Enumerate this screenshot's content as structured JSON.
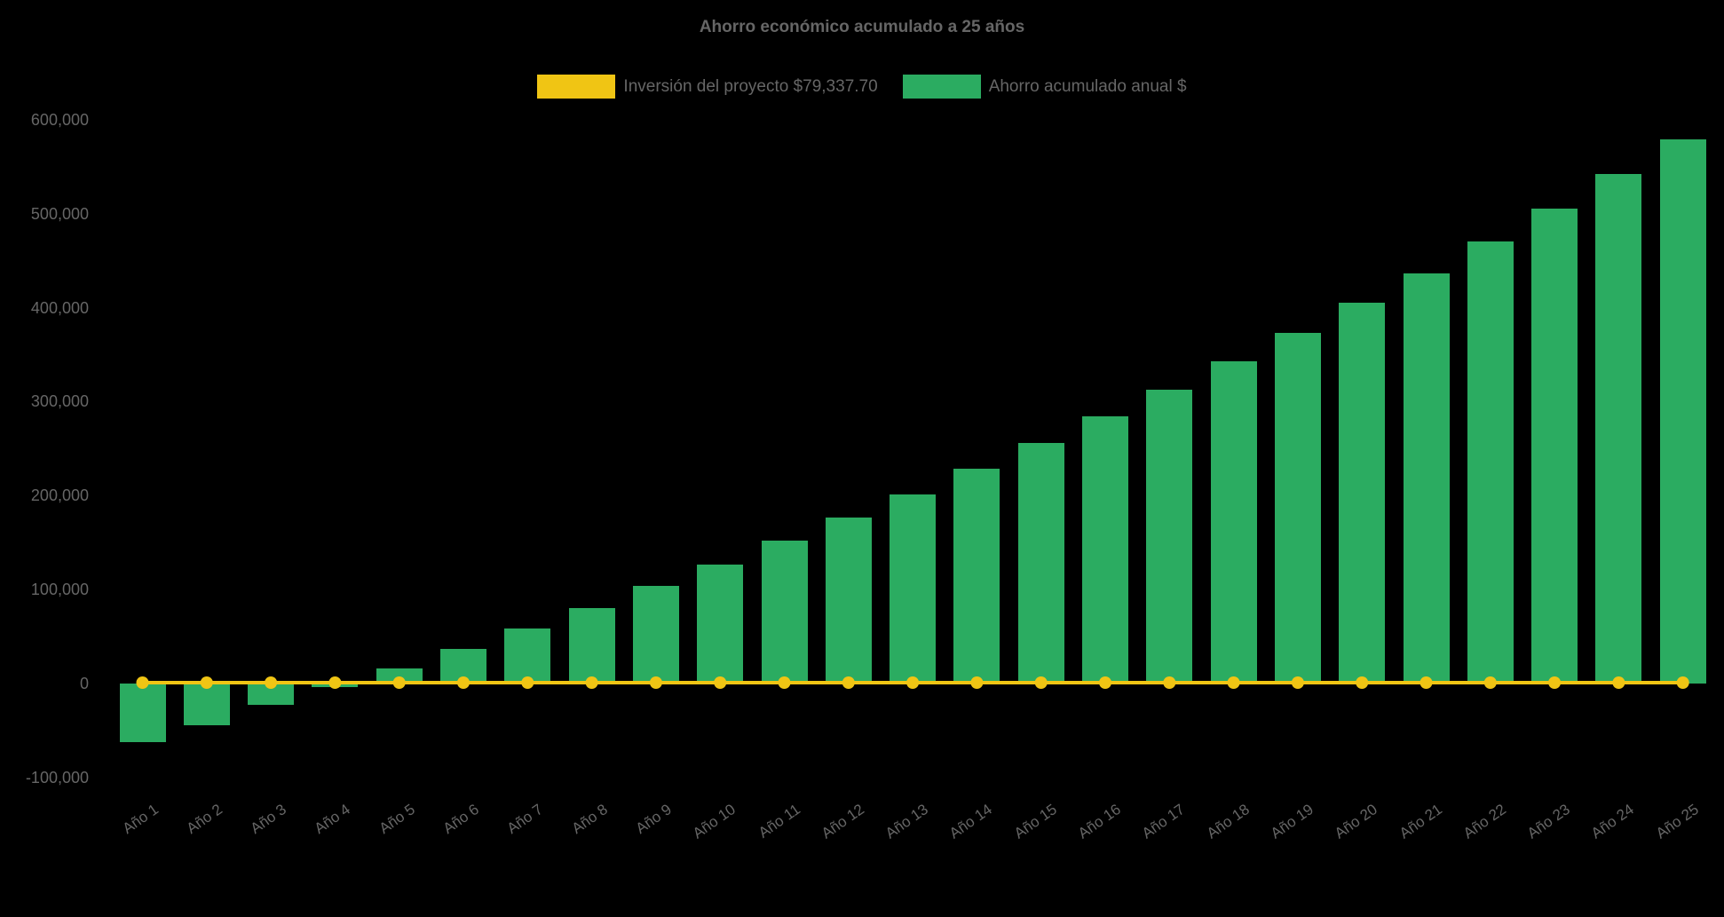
{
  "page": {
    "background": "#000000",
    "text_color": "#666666"
  },
  "title": "Ahorro económico acumulado a 25 años",
  "legend": [
    {
      "label": "Inversión del proyecto $79,337.70",
      "color": "#F0C514",
      "series_type": "line"
    },
    {
      "label": "Ahorro acumulado anual $",
      "color": "#2BAC61",
      "series_type": "bar"
    }
  ],
  "chart_data": {
    "type": "bar",
    "title": "Ahorro económico acumulado a 25 años",
    "categories": [
      "Año 1",
      "Año 2",
      "Año 3",
      "Año 4",
      "Año 5",
      "Año 6",
      "Año 7",
      "Año 8",
      "Año 9",
      "Año 10",
      "Año 11",
      "Año 12",
      "Año 13",
      "Año 14",
      "Año 15",
      "Año 16",
      "Año 17",
      "Año 18",
      "Año 19",
      "Año 20",
      "Año 21",
      "Año 22",
      "Año 23",
      "Año 24",
      "Año 25"
    ],
    "series": [
      {
        "name": "Ahorro acumulado anual $",
        "type": "bar",
        "color": "#2BAC61",
        "values": [
          -62000,
          -44000,
          -23000,
          -4000,
          16000,
          37000,
          59000,
          80000,
          104000,
          127000,
          152000,
          177000,
          201000,
          229000,
          256000,
          284000,
          313000,
          343000,
          373000,
          405000,
          436000,
          470000,
          505000,
          542000,
          579000
        ]
      },
      {
        "name": "Inversión del proyecto $79,337.70",
        "type": "line",
        "color": "#F0C514",
        "marker": "circle",
        "values": [
          0,
          0,
          0,
          0,
          0,
          0,
          0,
          0,
          0,
          0,
          0,
          0,
          0,
          0,
          0,
          0,
          0,
          0,
          0,
          0,
          0,
          0,
          0,
          0,
          0
        ]
      }
    ],
    "xlabel": "",
    "ylabel": "",
    "ylim": [
      -100000,
      600000
    ],
    "yticks": [
      600000,
      500000,
      400000,
      300000,
      200000,
      100000,
      0,
      -100000
    ],
    "ytick_format": "thousands-comma",
    "x_label_rotation": -35,
    "grid": false,
    "legend_position": "top"
  }
}
